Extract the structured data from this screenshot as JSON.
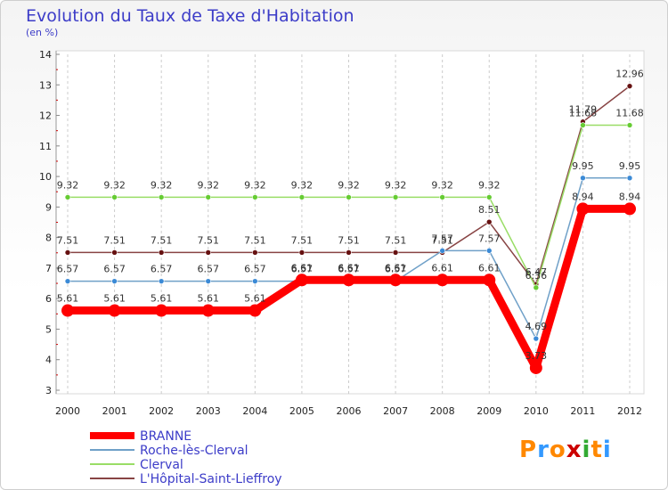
{
  "chart_data": {
    "type": "line",
    "title": "Evolution du Taux de Taxe d'Habitation",
    "subtitle": "(en %)",
    "x": [
      "2000",
      "2001",
      "2002",
      "2003",
      "2004",
      "2005",
      "2006",
      "2007",
      "2008",
      "2009",
      "2010",
      "2011",
      "2012"
    ],
    "yticks": [
      "3",
      "4",
      "5",
      "6",
      "7",
      "8",
      "9",
      "10",
      "11",
      "12",
      "13",
      "14"
    ],
    "ylim": [
      3,
      14
    ],
    "grid": "vertical-dashed",
    "legend_position": "bottom-left",
    "series": [
      {
        "name": "BRANNE",
        "color": "#ff0000",
        "marker": "#ff0000",
        "values": [
          5.61,
          5.61,
          5.61,
          5.61,
          5.61,
          6.61,
          6.61,
          6.61,
          6.61,
          6.61,
          3.73,
          8.94,
          8.94
        ],
        "labels": [
          "5.61",
          "5.61",
          "5.61",
          "5.61",
          "5.61",
          "6.61",
          "6.61",
          "6.61",
          "6.61",
          "6.61",
          "3.73",
          "8.94",
          "8.94"
        ]
      },
      {
        "name": "Roche-lès-Clerval",
        "color": "#6fa0c8",
        "marker": "#3b8ad6",
        "values": [
          6.57,
          6.57,
          6.57,
          6.57,
          6.57,
          6.57,
          6.57,
          6.57,
          7.57,
          7.57,
          4.69,
          9.95,
          9.95
        ],
        "labels": [
          "6.57",
          "6.57",
          "6.57",
          "6.57",
          "6.57",
          "6.57",
          "6.57",
          "6.57",
          "7.57",
          "7.57",
          "4.69",
          "9.95",
          "9.95"
        ]
      },
      {
        "name": "Clerval",
        "color": "#99dd66",
        "marker": "#66cc33",
        "values": [
          9.32,
          9.32,
          9.32,
          9.32,
          9.32,
          9.32,
          9.32,
          9.32,
          9.32,
          9.32,
          6.36,
          11.68,
          11.68
        ],
        "labels": [
          "9.32",
          "9.32",
          "9.32",
          "9.32",
          "9.32",
          "9.32",
          "9.32",
          "9.32",
          "9.32",
          "9.32",
          "6.36",
          "11.68",
          "11.68"
        ]
      },
      {
        "name": "L'Hôpital-Saint-Lieffroy",
        "color": "#884444",
        "marker": "#661111",
        "values": [
          7.51,
          7.51,
          7.51,
          7.51,
          7.51,
          7.51,
          7.51,
          7.51,
          7.51,
          8.51,
          6.47,
          11.79,
          12.96
        ],
        "labels": [
          "7.51",
          "7.51",
          "7.51",
          "7.51",
          "7.51",
          "7.51",
          "7.51",
          "7.51",
          "7.51",
          "8.51",
          "6.47",
          "11.79",
          "12.96"
        ]
      }
    ]
  },
  "logo": {
    "text": "Proxiti",
    "letters": [
      "P",
      "r",
      "o",
      "x",
      "i",
      "t",
      "i"
    ],
    "colors": [
      "#ff8800",
      "#3399ff",
      "#ff8800",
      "#cc0000",
      "#33aa33",
      "#ff8800",
      "#3399ff"
    ]
  }
}
